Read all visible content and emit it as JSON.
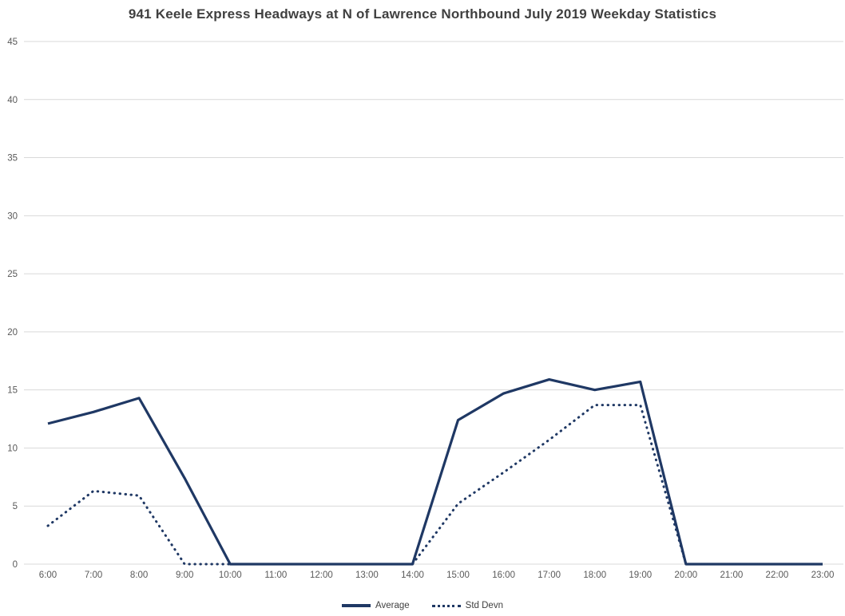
{
  "chart_data": {
    "type": "line",
    "title": "941 Keele Express Headways at N of Lawrence Northbound July 2019 Weekday Statistics",
    "categories": [
      "6:00",
      "7:00",
      "8:00",
      "9:00",
      "10:00",
      "11:00",
      "12:00",
      "13:00",
      "14:00",
      "15:00",
      "16:00",
      "17:00",
      "18:00",
      "19:00",
      "20:00",
      "21:00",
      "22:00",
      "23:00"
    ],
    "series": [
      {
        "name": "Average",
        "style": "solid",
        "values": [
          12.1,
          13.1,
          14.3,
          7.4,
          0,
          0,
          0,
          0,
          0,
          12.4,
          14.7,
          15.9,
          15.0,
          15.7,
          0,
          0,
          0,
          0
        ]
      },
      {
        "name": "Std Devn",
        "style": "dotted",
        "values": [
          3.3,
          6.3,
          5.9,
          0,
          0,
          0,
          0,
          0,
          0,
          5.2,
          7.9,
          10.7,
          13.7,
          13.7,
          0,
          0,
          0,
          0
        ]
      }
    ],
    "xlabel": "",
    "ylabel": "",
    "ylim": [
      0,
      45
    ],
    "ytick_step": 5,
    "grid": true,
    "legend_position": "bottom",
    "line_color": "#1f3864",
    "grid_color": "#d9d9d9",
    "tick_color": "#595959",
    "title_color": "#404040"
  }
}
